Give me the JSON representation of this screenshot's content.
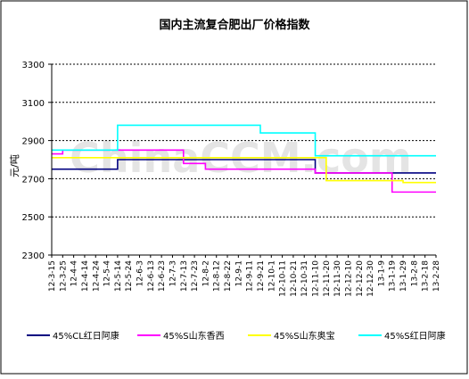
{
  "chart_data": {
    "type": "line",
    "title": "国内主流复合肥出厂价格指数",
    "ylabel": "元/吨",
    "xlabel": "",
    "ylim": [
      2300,
      3300
    ],
    "yticks": [
      2300,
      2500,
      2700,
      2900,
      3100,
      3300
    ],
    "grid": true,
    "legend_position": "bottom",
    "watermark": "ChinaCCM.com",
    "categories": [
      "12-3-15",
      "12-3-25",
      "12-4-4",
      "12-4-14",
      "12-4-24",
      "12-5-4",
      "12-5-14",
      "12-5-24",
      "12-6-3",
      "12-6-13",
      "12-6-23",
      "12-7-3",
      "12-7-13",
      "12-7-23",
      "12-8-2",
      "12-8-12",
      "12-8-22",
      "12-9-1",
      "12-9-11",
      "12-9-21",
      "12-10-1",
      "12-10-11",
      "12-10-21",
      "12-10-31",
      "12-11-10",
      "12-11-20",
      "12-11-30",
      "12-12-10",
      "12-12-20",
      "12-12-30",
      "13-1-9",
      "13-1-19",
      "13-1-29",
      "13-2-8",
      "13-2-18",
      "13-2-28"
    ],
    "series": [
      {
        "name": "45%CL红日阿康",
        "color": "#000080",
        "values": [
          2750,
          2750,
          2750,
          2750,
          2750,
          2750,
          2800,
          2800,
          2800,
          2800,
          2800,
          2800,
          2800,
          2800,
          2800,
          2800,
          2800,
          2800,
          2800,
          2800,
          2800,
          2800,
          2800,
          2800,
          2730,
          2730,
          2730,
          2730,
          2730,
          2730,
          2730,
          2730,
          2730,
          2730,
          2730,
          2730
        ]
      },
      {
        "name": "45%S山东香西",
        "color": "#ff00ff",
        "values": [
          2830,
          2850,
          2850,
          2850,
          2850,
          2850,
          2850,
          2850,
          2850,
          2850,
          2850,
          2850,
          2780,
          2780,
          2750,
          2750,
          2750,
          2750,
          2750,
          2750,
          2750,
          2750,
          2750,
          2750,
          2730,
          2730,
          2730,
          2730,
          2730,
          2730,
          2730,
          2630,
          2630,
          2630,
          2630,
          2630
        ]
      },
      {
        "name": "45%S山东奥宝",
        "color": "#ffff00",
        "values": [
          2810,
          2810,
          2810,
          2810,
          2810,
          2810,
          2810,
          2810,
          2810,
          2810,
          2810,
          2810,
          2810,
          2810,
          2810,
          2810,
          2810,
          2810,
          2810,
          2810,
          2810,
          2810,
          2810,
          2810,
          2810,
          2690,
          2690,
          2690,
          2690,
          2690,
          2690,
          2690,
          2680,
          2680,
          2680,
          2680
        ]
      },
      {
        "name": "45%S红日阿康",
        "color": "#00ffff",
        "values": [
          2850,
          2850,
          2850,
          2850,
          2850,
          2850,
          2980,
          2980,
          2980,
          2980,
          2980,
          2980,
          2980,
          2980,
          2980,
          2980,
          2980,
          2980,
          2980,
          2940,
          2940,
          2940,
          2940,
          2940,
          2820,
          2820,
          2820,
          2820,
          2820,
          2820,
          2820,
          2820,
          2820,
          2820,
          2820,
          2820
        ]
      }
    ]
  }
}
